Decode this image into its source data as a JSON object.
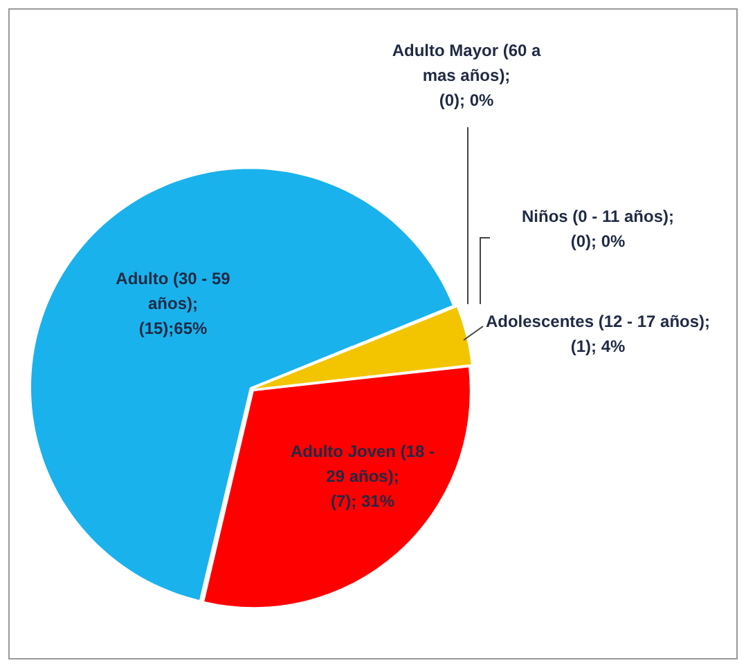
{
  "chart_data": {
    "type": "pie",
    "categories": [
      "Niños (0 - 11 años)",
      "Adolescentes  (12 - 17 años)",
      "Adulto Joven (18 - 29 años)",
      "Adulto (30 - 59 años)",
      "Adulto Mayor (60 a mas años)"
    ],
    "values": [
      0,
      1,
      7,
      15,
      0
    ],
    "colors": [
      "#7f7f7f",
      "#f2c500",
      "#ff0000",
      "#1ab2ec",
      "#92d050"
    ],
    "value_labels": [
      "; (0); 0%",
      "; (1); 4%",
      ";  (7); 31%",
      "; (15);65%",
      "; (0); 0%"
    ],
    "legend": false
  }
}
